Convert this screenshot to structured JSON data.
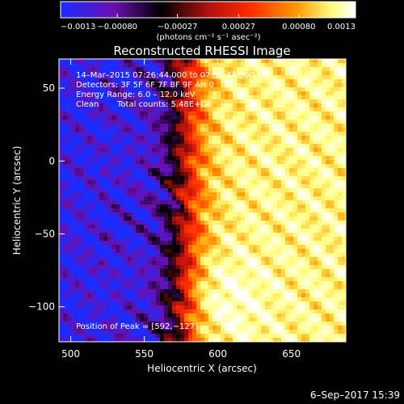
{
  "chart_data": {
    "type": "heatmap",
    "title": "Reconstructed RHESSI Image",
    "xlabel": "Heliocentric X (arcsec)",
    "ylabel": "Heliocentric Y (arcsec)",
    "xlim": [
      492,
      687
    ],
    "ylim": [
      -124,
      70
    ],
    "x_ticks": [
      "500",
      "550",
      "600",
      "650"
    ],
    "y_ticks": [
      "50",
      "0",
      "−50",
      "−100"
    ],
    "colorbar": {
      "min": -0.0013,
      "max": 0.0013,
      "tick_labels": [
        "−0.0013",
        "−0.00080",
        "−0.00027",
        "0.00027",
        "0.00080",
        "0.0013"
      ],
      "unit_label": "(photons cm⁻² s⁻¹ asec⁻²)",
      "colors": [
        "#1a2cff",
        "#6a10b0",
        "#000000",
        "#b01010",
        "#ff2a00",
        "#ff9a00",
        "#ffff80",
        "#ffffff"
      ]
    },
    "annotations": {
      "time": "14–Mar–2015 07:26:44.000 to 07:36:44.000",
      "detectors": "Detectors: 3F 5F 6F 7F 8F 9F AH 0",
      "energy": "Energy Range: 6.0 – 12.0 keV",
      "method": "Clean",
      "counts": "Total counts: 5.48E+04",
      "peak": "Position of Peak = [592,−127]"
    }
  },
  "footer": {
    "date": "6–Sep–2017 15:39"
  }
}
